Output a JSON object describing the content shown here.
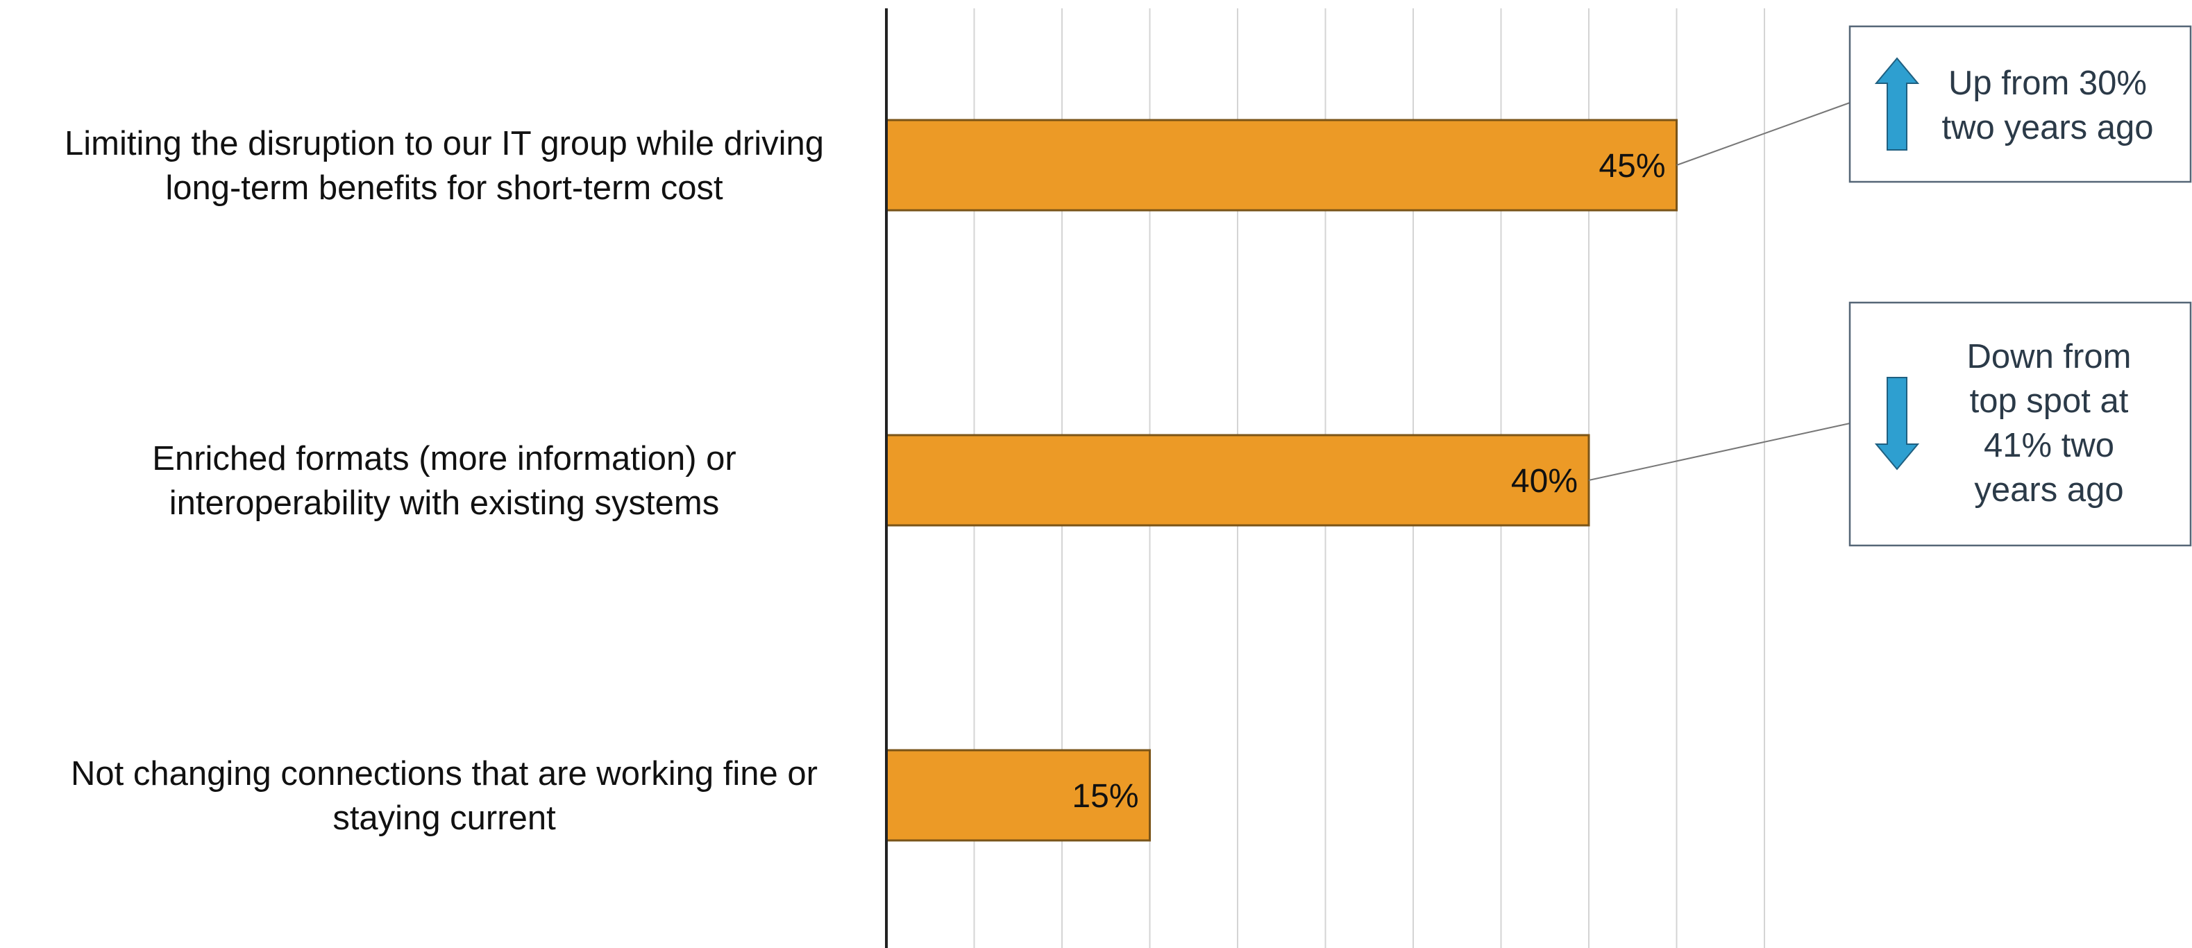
{
  "chart_data": {
    "type": "bar",
    "orientation": "horizontal",
    "categories": [
      [
        "Limiting the disruption to our IT group while driving",
        "long-term benefits for short-term cost"
      ],
      [
        "Enriched formats (more information) or",
        "interoperability with existing systems"
      ],
      [
        "Not changing connections that are working fine or",
        "staying current"
      ]
    ],
    "values": [
      45,
      40,
      15
    ],
    "value_labels": [
      "45%",
      "40%",
      "15%"
    ],
    "xlim": [
      0,
      50
    ],
    "grid_step": 5,
    "grid": true,
    "bar_color": "#ec9a26",
    "bar_border_color": "#7a5418",
    "grid_color": "#d4d4d4",
    "axis_color": "#222222",
    "annotations": [
      {
        "bar_index": 0,
        "direction": "up",
        "icon": "arrow-up-icon",
        "lines": [
          "Up from 30%",
          "two years ago"
        ]
      },
      {
        "bar_index": 1,
        "direction": "down",
        "icon": "arrow-down-icon",
        "lines": [
          "Down from",
          "top spot at",
          "41% two",
          "years ago"
        ]
      }
    ],
    "arrow_color": "#2e9fd0",
    "arrow_border_color": "#1f5f80",
    "note_border_color": "#556677"
  }
}
